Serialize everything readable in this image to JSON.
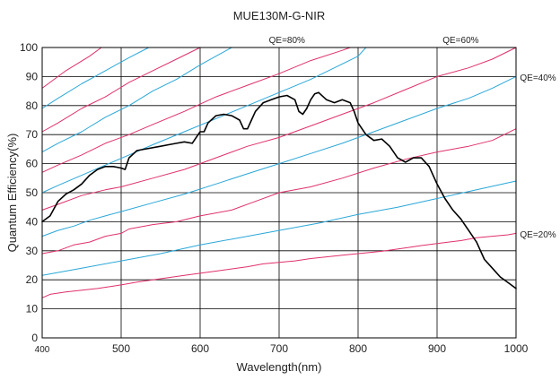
{
  "chart_data": {
    "type": "line",
    "title": "MUE130M-G-NIR",
    "xlabel": "Wavelength(nm)",
    "ylabel": "Quantum Efficiency(%)",
    "xlim": [
      400,
      1000
    ],
    "ylim": [
      0,
      100
    ],
    "xticks": [
      "400",
      "500",
      "600",
      "700",
      "800",
      "900",
      "1000"
    ],
    "yticks": [
      "0",
      "10",
      "20",
      "30",
      "40",
      "50",
      "60",
      "70",
      "80",
      "90",
      "100"
    ],
    "grid": true,
    "series": [
      {
        "color": "#000000",
        "points": [
          [
            400,
            40
          ],
          [
            410,
            42
          ],
          [
            420,
            47
          ],
          [
            430,
            49.5
          ],
          [
            440,
            51
          ],
          [
            450,
            53
          ],
          [
            460,
            56
          ],
          [
            470,
            58
          ],
          [
            480,
            59
          ],
          [
            490,
            59
          ],
          [
            500,
            58.5
          ],
          [
            505,
            58
          ],
          [
            510,
            62
          ],
          [
            520,
            64.5
          ],
          [
            530,
            65
          ],
          [
            550,
            66
          ],
          [
            560,
            66.5
          ],
          [
            570,
            67
          ],
          [
            580,
            67.5
          ],
          [
            590,
            67
          ],
          [
            595,
            69
          ],
          [
            600,
            71
          ],
          [
            605,
            71
          ],
          [
            610,
            74
          ],
          [
            620,
            76.5
          ],
          [
            630,
            77
          ],
          [
            640,
            76.5
          ],
          [
            650,
            75
          ],
          [
            655,
            72
          ],
          [
            660,
            72
          ],
          [
            665,
            75
          ],
          [
            670,
            78
          ],
          [
            680,
            81
          ],
          [
            690,
            82
          ],
          [
            700,
            83
          ],
          [
            710,
            83.5
          ],
          [
            720,
            82
          ],
          [
            725,
            78
          ],
          [
            730,
            77
          ],
          [
            735,
            79
          ],
          [
            740,
            82
          ],
          [
            745,
            84
          ],
          [
            750,
            84.5
          ],
          [
            760,
            82
          ],
          [
            770,
            81
          ],
          [
            780,
            82
          ],
          [
            790,
            81
          ],
          [
            795,
            78
          ],
          [
            800,
            74
          ],
          [
            810,
            70
          ],
          [
            820,
            68
          ],
          [
            830,
            68.5
          ],
          [
            840,
            66
          ],
          [
            850,
            62
          ],
          [
            860,
            60.5
          ],
          [
            870,
            62
          ],
          [
            880,
            62
          ],
          [
            890,
            59
          ],
          [
            900,
            53
          ],
          [
            910,
            48
          ],
          [
            920,
            44
          ],
          [
            930,
            41
          ],
          [
            940,
            37
          ],
          [
            950,
            33
          ],
          [
            955,
            30
          ],
          [
            960,
            27
          ],
          [
            970,
            24
          ],
          [
            980,
            21
          ],
          [
            990,
            19
          ],
          [
            1000,
            17
          ]
        ]
      },
      {
        "color": "#e0306d",
        "kind": "qe-reference",
        "points": [
          [
            400,
            13.8
          ],
          [
            410,
            15
          ],
          [
            430,
            15.8
          ],
          [
            470,
            17
          ],
          [
            490,
            17.8
          ],
          [
            505,
            18.5
          ],
          [
            520,
            19.2
          ],
          [
            540,
            20
          ],
          [
            580,
            21.5
          ],
          [
            620,
            23
          ],
          [
            660,
            24.5
          ],
          [
            680,
            25.5
          ],
          [
            700,
            26
          ],
          [
            720,
            26.5
          ],
          [
            740,
            27.3
          ],
          [
            780,
            28.5
          ],
          [
            800,
            29
          ],
          [
            830,
            29.8
          ],
          [
            860,
            31
          ],
          [
            880,
            31.8
          ],
          [
            900,
            32.5
          ],
          [
            930,
            33.5
          ],
          [
            950,
            34.5
          ],
          [
            970,
            35
          ],
          [
            990,
            35.5
          ],
          [
            1000,
            36
          ]
        ]
      },
      {
        "color": "#e0306d",
        "kind": "qe-reference",
        "points": [
          [
            400,
            29
          ],
          [
            420,
            30
          ],
          [
            440,
            32
          ],
          [
            460,
            33
          ],
          [
            480,
            35
          ],
          [
            500,
            36
          ],
          [
            510,
            37.5
          ],
          [
            540,
            39
          ],
          [
            570,
            40
          ],
          [
            600,
            42
          ],
          [
            640,
            44
          ],
          [
            670,
            47
          ],
          [
            700,
            50
          ],
          [
            740,
            52
          ],
          [
            780,
            55
          ],
          [
            820,
            58.5
          ],
          [
            860,
            61.5
          ],
          [
            900,
            64
          ],
          [
            940,
            66
          ],
          [
            970,
            68
          ],
          [
            1000,
            72
          ]
        ]
      },
      {
        "color": "#e0306d",
        "kind": "qe-reference",
        "points": [
          [
            400,
            44
          ],
          [
            420,
            46
          ],
          [
            450,
            49
          ],
          [
            480,
            51
          ],
          [
            500,
            52
          ],
          [
            540,
            55
          ],
          [
            580,
            58
          ],
          [
            620,
            62
          ],
          [
            660,
            66
          ],
          [
            700,
            69
          ],
          [
            740,
            73
          ],
          [
            780,
            77
          ],
          [
            820,
            81
          ],
          [
            860,
            85.5
          ],
          [
            900,
            90
          ],
          [
            940,
            93
          ],
          [
            970,
            96
          ],
          [
            1000,
            100
          ]
        ]
      },
      {
        "color": "#e0306d",
        "kind": "qe-reference",
        "points": [
          [
            400,
            57
          ],
          [
            420,
            59.5
          ],
          [
            450,
            63
          ],
          [
            480,
            67
          ],
          [
            510,
            70
          ],
          [
            540,
            73.5
          ],
          [
            580,
            78
          ],
          [
            620,
            83
          ],
          [
            660,
            87
          ],
          [
            700,
            91
          ],
          [
            740,
            95.5
          ],
          [
            780,
            99
          ],
          [
            790,
            100
          ]
        ]
      },
      {
        "color": "#e0306d",
        "kind": "qe-reference",
        "points": [
          [
            400,
            71
          ],
          [
            420,
            74
          ],
          [
            450,
            79
          ],
          [
            480,
            83
          ],
          [
            510,
            88
          ],
          [
            540,
            92
          ],
          [
            570,
            96
          ],
          [
            600,
            100
          ]
        ]
      },
      {
        "color": "#e0306d",
        "kind": "qe-reference",
        "points": [
          [
            400,
            86
          ],
          [
            430,
            92
          ],
          [
            460,
            97
          ],
          [
            475,
            100
          ]
        ]
      },
      {
        "color": "#2aa7d8",
        "kind": "qe-reference",
        "points": [
          [
            400,
            21.5
          ],
          [
            450,
            24
          ],
          [
            500,
            26.5
          ],
          [
            550,
            29
          ],
          [
            600,
            32
          ],
          [
            650,
            34.5
          ],
          [
            700,
            37
          ],
          [
            750,
            39.5
          ],
          [
            800,
            42.5
          ],
          [
            850,
            45
          ],
          [
            900,
            48
          ],
          [
            950,
            51
          ],
          [
            1000,
            54
          ]
        ]
      },
      {
        "color": "#2aa7d8",
        "kind": "qe-reference",
        "points": [
          [
            400,
            35
          ],
          [
            420,
            37
          ],
          [
            440,
            38.5
          ],
          [
            460,
            40.5
          ],
          [
            480,
            42
          ],
          [
            500,
            43.5
          ],
          [
            540,
            46.5
          ],
          [
            580,
            49.5
          ],
          [
            620,
            53
          ],
          [
            660,
            56.5
          ],
          [
            700,
            60
          ],
          [
            740,
            63.5
          ],
          [
            780,
            67
          ],
          [
            820,
            71
          ],
          [
            860,
            75
          ],
          [
            900,
            79
          ],
          [
            940,
            82.5
          ],
          [
            970,
            86
          ],
          [
            1000,
            90
          ]
        ]
      },
      {
        "color": "#2aa7d8",
        "kind": "qe-reference",
        "points": [
          [
            400,
            50
          ],
          [
            420,
            52.5
          ],
          [
            450,
            56
          ],
          [
            480,
            59.5
          ],
          [
            510,
            63
          ],
          [
            540,
            66.5
          ],
          [
            580,
            71
          ],
          [
            620,
            75.5
          ],
          [
            660,
            80
          ],
          [
            700,
            84.5
          ],
          [
            740,
            89
          ],
          [
            770,
            93
          ],
          [
            800,
            97
          ],
          [
            810,
            100
          ]
        ]
      },
      {
        "color": "#2aa7d8",
        "kind": "qe-reference",
        "points": [
          [
            400,
            64
          ],
          [
            420,
            67
          ],
          [
            450,
            71
          ],
          [
            480,
            76
          ],
          [
            510,
            80
          ],
          [
            540,
            85
          ],
          [
            570,
            89
          ],
          [
            600,
            94
          ],
          [
            620,
            97
          ],
          [
            640,
            100
          ]
        ]
      },
      {
        "color": "#2aa7d8",
        "kind": "qe-reference",
        "points": [
          [
            400,
            79
          ],
          [
            420,
            82.5
          ],
          [
            450,
            87.5
          ],
          [
            480,
            92
          ],
          [
            510,
            96.5
          ],
          [
            535,
            100
          ]
        ]
      }
    ],
    "annotations": [
      {
        "text": "QE=80%",
        "x": 710,
        "y": 102.5,
        "anchor": "middle"
      },
      {
        "text": "QE=60%",
        "x": 930,
        "y": 102.5,
        "anchor": "middle"
      },
      {
        "text": "QE=40%",
        "x": 1005,
        "y": 89.5,
        "anchor": "start"
      },
      {
        "text": "QE=20%",
        "x": 1005,
        "y": 35.5,
        "anchor": "start"
      }
    ]
  }
}
